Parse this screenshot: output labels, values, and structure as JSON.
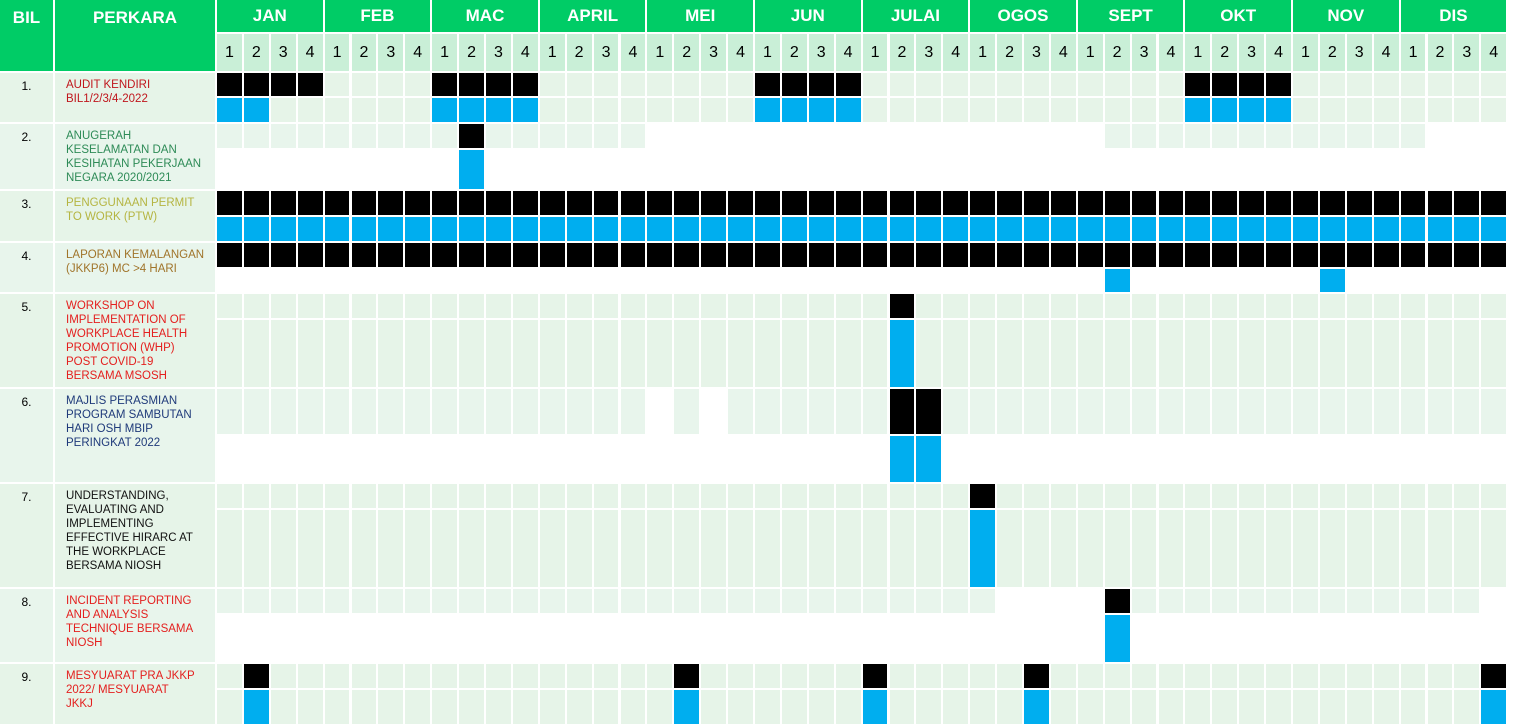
{
  "header": {
    "bil": "BIL",
    "perkara": "PERKARA",
    "months": [
      "JAN",
      "FEB",
      "MAC",
      "APRIL",
      "MEI",
      "JUN",
      "JULAI",
      "OGOS",
      "SEPT",
      "OKT",
      "NOV",
      "DIS"
    ],
    "weeks": [
      "1",
      "2",
      "3",
      "4"
    ]
  },
  "colors": {
    "header_green": "#00cc66",
    "week_header": "#c9efd7",
    "row_light": "#e6f4e8",
    "row_pale": "#e8f5ec",
    "plan_black": "#000000",
    "actual_blue": "#00aeef"
  },
  "rows": [
    {
      "no": "1.",
      "text": [
        "AUDIT KENDIRI",
        "BIL1/2/3/4-2022"
      ],
      "color": "#c0161c",
      "plan": [
        0,
        1,
        2,
        3,
        8,
        9,
        10,
        11,
        20,
        21,
        22,
        23,
        36,
        37,
        38,
        39
      ],
      "actual": [
        0,
        1,
        8,
        9,
        10,
        11,
        20,
        21,
        22,
        23,
        36,
        37,
        38,
        39
      ]
    },
    {
      "no": "2.",
      "text": [
        "ANUGERAH",
        "KESELAMATAN DAN",
        "KESIHATAN PEKERJAAN",
        "NEGARA 2020/2021"
      ],
      "color": "#2e8b57",
      "plan": [
        9
      ],
      "actual": [
        9
      ]
    },
    {
      "no": "3.",
      "text": [
        "PENGGUNAAN PERMIT",
        "TO WORK (PTW)"
      ],
      "color": "#b5b542",
      "plan": "all",
      "actual": "all"
    },
    {
      "no": "4.",
      "text": [
        "LAPORAN KEMALANGAN",
        "(JKKP6) MC >4 HARI"
      ],
      "color": "#a0742a",
      "plan": "all",
      "actual": [
        33,
        41
      ]
    },
    {
      "no": "5.",
      "text": [
        "WORKSHOP ON",
        "IMPLEMENTATION OF",
        "WORKPLACE HEALTH",
        "PROMOTION (WHP)",
        "POST COVID-19",
        "BERSAMA MSOSH"
      ],
      "color": "#e4201f",
      "plan": [
        25
      ],
      "actual": [
        25
      ]
    },
    {
      "no": "6.",
      "text": [
        "MAJLIS PERASMIAN",
        "PROGRAM SAMBUTAN",
        "HARI OSH MBIP",
        "PERINGKAT 2022"
      ],
      "color": "#1f3a7a",
      "plan": [
        25,
        26
      ],
      "actual": [
        25,
        26
      ]
    },
    {
      "no": "7.",
      "text": [
        "UNDERSTANDING,",
        "EVALUATING AND",
        "IMPLEMENTING",
        "EFFECTIVE HIRARC AT",
        "THE WORKPLACE",
        "BERSAMA NIOSH"
      ],
      "color": "#111111",
      "plan": [
        28
      ],
      "actual": [
        28
      ]
    },
    {
      "no": "8.",
      "text": [
        "INCIDENT REPORTING",
        "AND ANALYSIS",
        "TECHNIQUE BERSAMA",
        "NIOSH"
      ],
      "color": "#e4201f",
      "plan": [
        33
      ],
      "actual": [
        33
      ]
    },
    {
      "no": "9.",
      "text": [
        "MESYUARAT PRA JKKP",
        "2022/ MESYUARAT",
        "JKKJ"
      ],
      "color": "#e4201f",
      "plan": [
        1,
        17,
        24,
        30,
        47
      ],
      "actual": [
        1,
        17,
        24,
        30,
        47
      ]
    }
  ]
}
